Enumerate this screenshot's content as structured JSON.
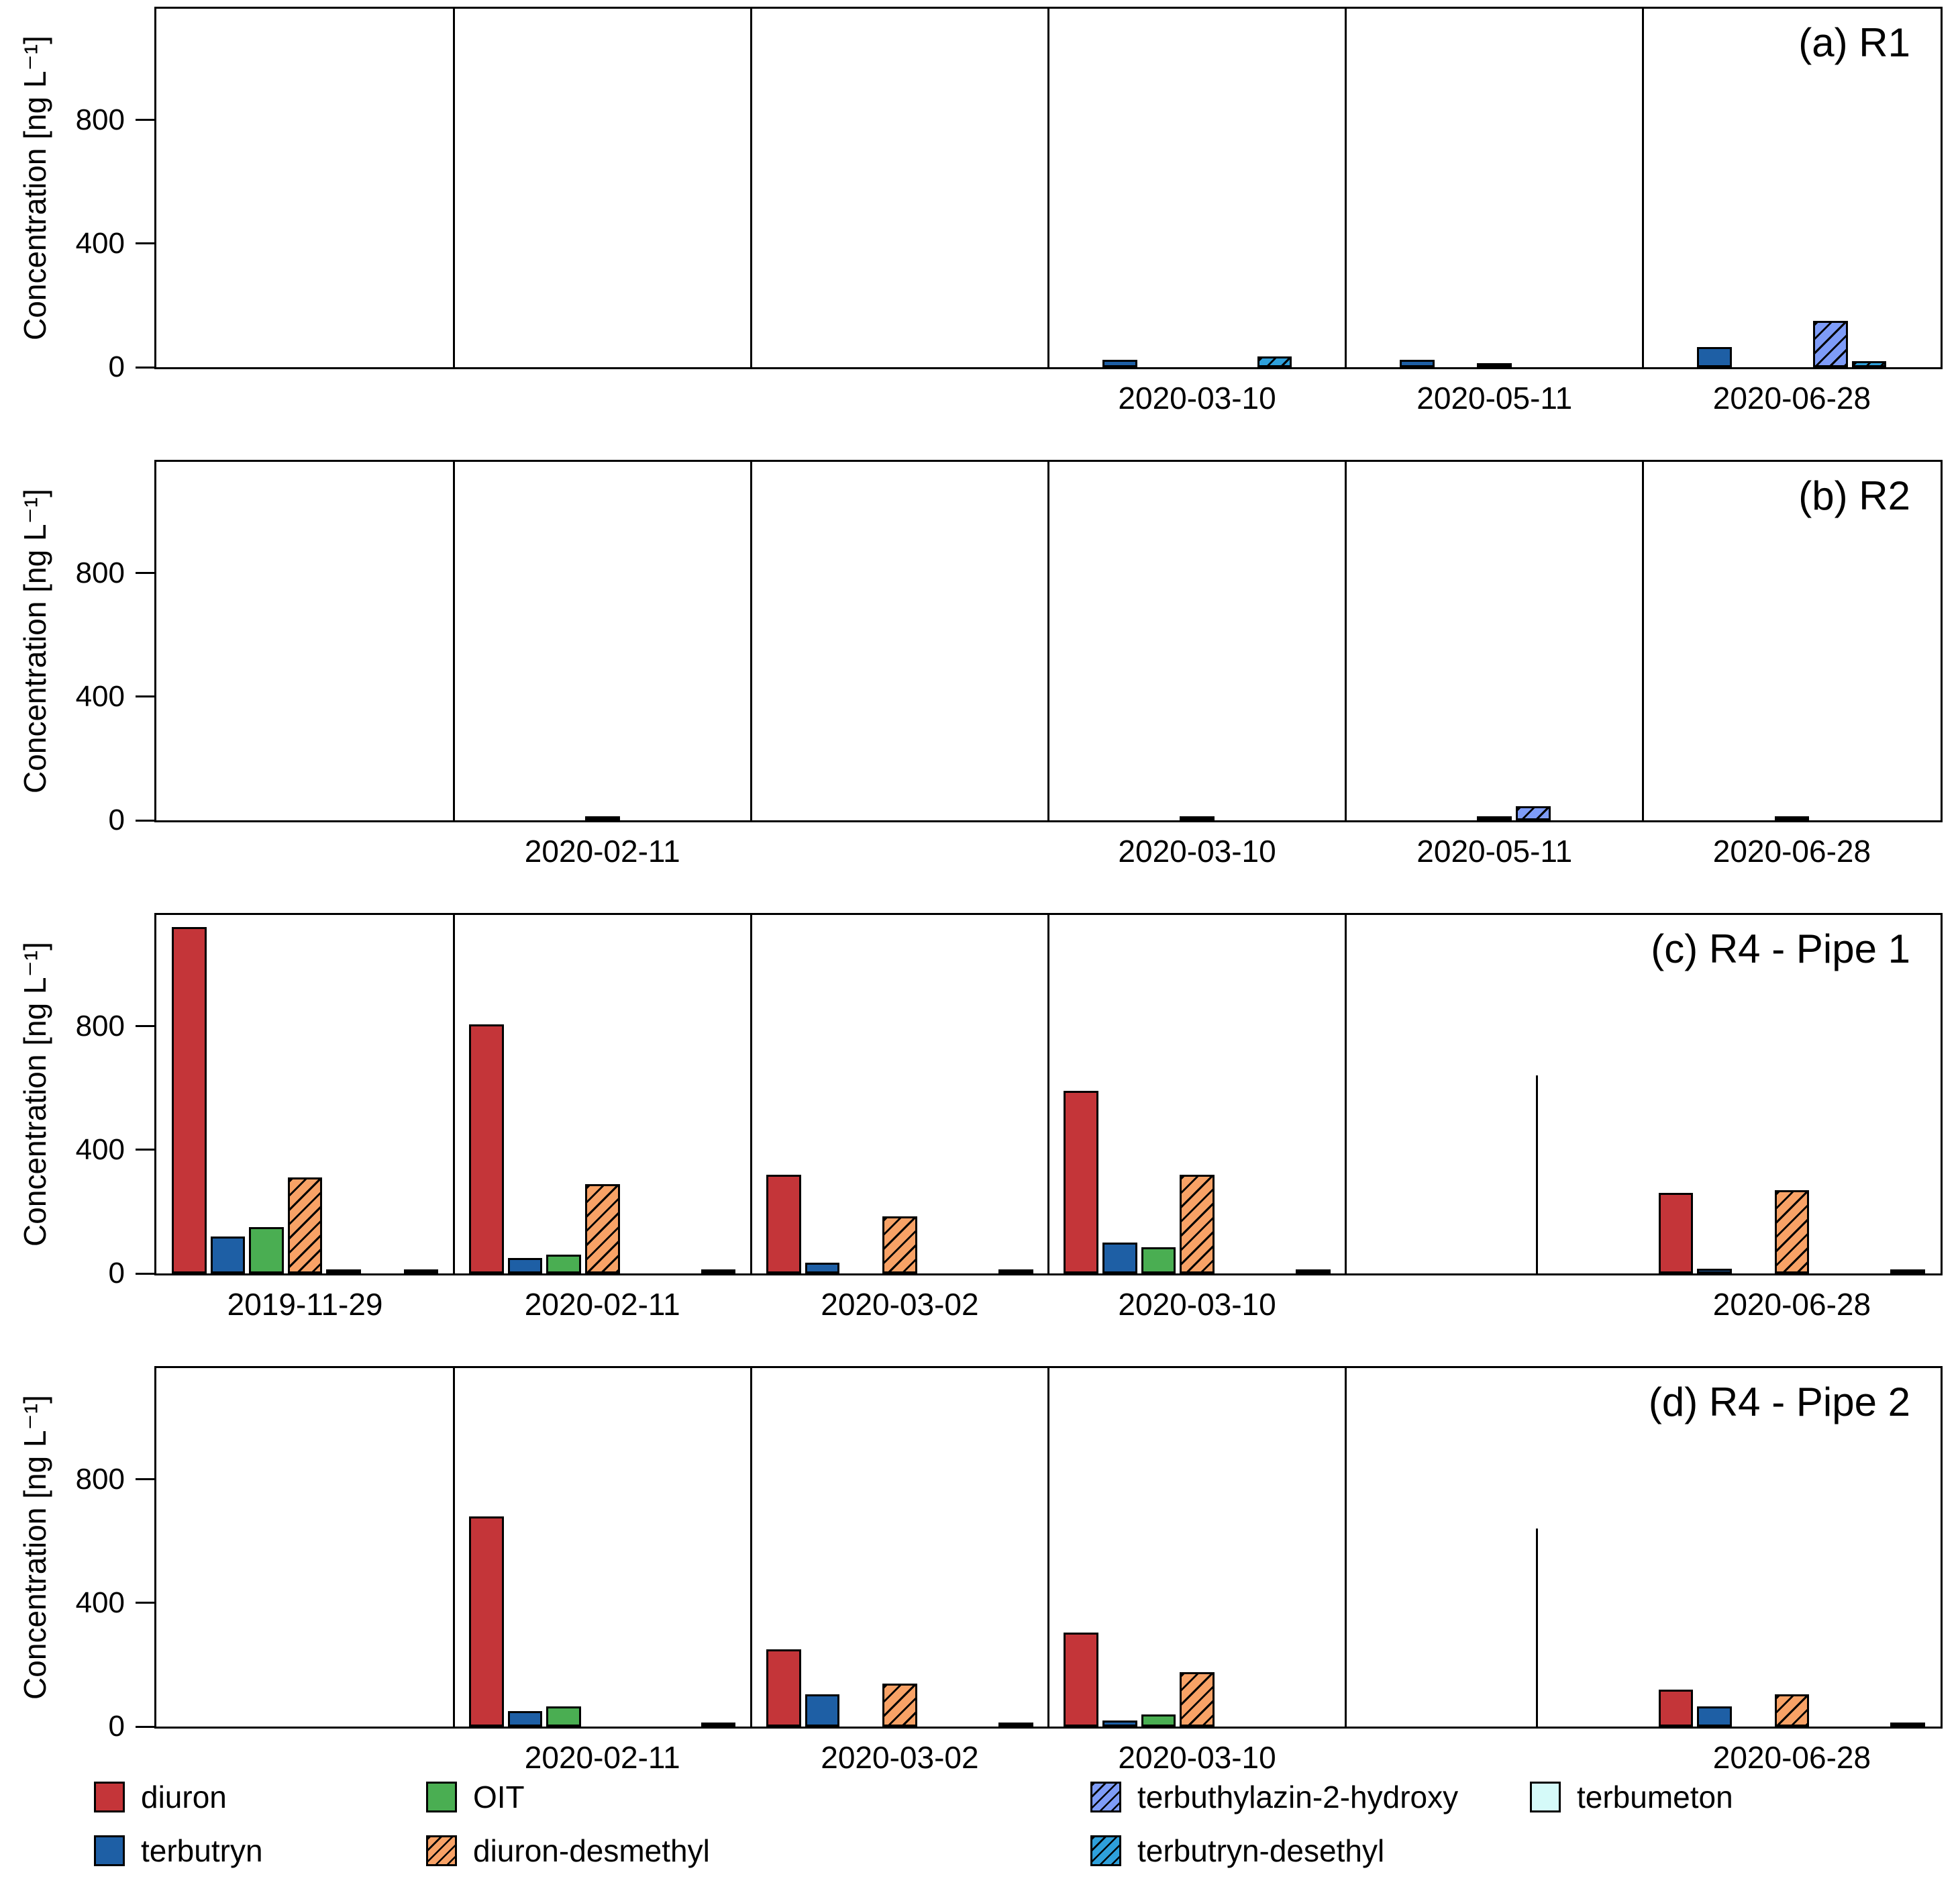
{
  "chart_data": {
    "type": "bar",
    "ylabel": "Concentration [ng L⁻¹]",
    "yticks": [
      0,
      400,
      800
    ],
    "ylim": [
      0,
      1160
    ],
    "n_columns": 6,
    "grid": "off",
    "legend_position": "bottom",
    "series": [
      {
        "name": "diuron",
        "color": "#C43539",
        "hatch": false
      },
      {
        "name": "terbutryn",
        "color": "#1E5FA5",
        "hatch": false
      },
      {
        "name": "OIT",
        "color": "#4AAE52",
        "hatch": false
      },
      {
        "name": "diuron-desmethyl",
        "color": "#F8A266",
        "hatch": true
      },
      {
        "name": "terbuthylazin-2-hydroxy",
        "color": "#7E9CF8",
        "hatch": true
      },
      {
        "name": "terbutryn-desethyl",
        "color": "#2EA0DB",
        "hatch": true
      },
      {
        "name": "terbumeton",
        "color": "#D5FAF9",
        "hatch": false
      }
    ],
    "legend": {
      "rows": [
        [
          "diuron",
          "OIT",
          "terbuthylazin-2-hydroxy",
          "terbumeton"
        ],
        [
          "terbutryn",
          "diuron-desmethyl",
          "terbutryn-desethyl"
        ]
      ]
    },
    "panels": [
      {
        "label": "(a) R1",
        "separators": [
          1,
          2,
          3,
          4,
          5
        ],
        "groups": [
          {
            "date": "",
            "values": {}
          },
          {
            "date": "",
            "values": {}
          },
          {
            "date": "",
            "values": {}
          },
          {
            "date": "2020-03-10",
            "values": {
              "terbutryn": 25,
              "terbutryn-desethyl": 35
            }
          },
          {
            "date": "2020-05-11",
            "values": {
              "terbutryn": 25,
              "diuron-desmethyl": 5
            }
          },
          {
            "date": "2020-06-28",
            "values": {
              "terbutryn": 65,
              "terbuthylazin-2-hydroxy": 150,
              "terbutryn-desethyl": 20
            }
          }
        ]
      },
      {
        "label": "(b) R2",
        "separators": [
          1,
          2,
          3,
          4,
          5
        ],
        "groups": [
          {
            "date": "",
            "values": {}
          },
          {
            "date": "2020-02-11",
            "values": {
              "diuron-desmethyl": 6
            }
          },
          {
            "date": "",
            "values": {}
          },
          {
            "date": "2020-03-10",
            "values": {
              "diuron-desmethyl": 8
            }
          },
          {
            "date": "2020-05-11",
            "values": {
              "diuron-desmethyl": 5,
              "terbuthylazin-2-hydroxy": 45
            }
          },
          {
            "date": "2020-06-28",
            "values": {
              "diuron-desmethyl": 8
            }
          }
        ]
      },
      {
        "label": "(c) R4 - Pipe 1",
        "separators": [
          1,
          2,
          3,
          4
        ],
        "spike": {
          "column": 5,
          "fraction": 0.64,
          "value": 640
        },
        "groups": [
          {
            "date": "2019-11-29",
            "values": {
              "diuron": 1120,
              "terbutryn": 120,
              "OIT": 150,
              "diuron-desmethyl": 310,
              "terbuthylazin-2-hydroxy": 5,
              "terbumeton": 4
            }
          },
          {
            "date": "2020-02-11",
            "values": {
              "diuron": 805,
              "terbutryn": 50,
              "OIT": 60,
              "diuron-desmethyl": 290,
              "terbumeton": 5
            }
          },
          {
            "date": "2020-03-02",
            "values": {
              "diuron": 320,
              "terbutryn": 35,
              "diuron-desmethyl": 185,
              "terbumeton": 6
            }
          },
          {
            "date": "2020-03-10",
            "values": {
              "diuron": 590,
              "terbutryn": 100,
              "OIT": 85,
              "diuron-desmethyl": 320,
              "terbumeton": 6
            }
          },
          {
            "date": "",
            "values": {}
          },
          {
            "date": "2020-06-28",
            "values": {
              "diuron": 260,
              "terbutryn": 15,
              "diuron-desmethyl": 270,
              "terbumeton": 5
            }
          }
        ]
      },
      {
        "label": "(d) R4 - Pipe 2",
        "separators": [
          1,
          2,
          3,
          4
        ],
        "spike": {
          "column": 5,
          "fraction": 0.64,
          "value": 640
        },
        "groups": [
          {
            "date": "",
            "values": {}
          },
          {
            "date": "2020-02-11",
            "values": {
              "diuron": 680,
              "terbutryn": 50,
              "OIT": 65,
              "terbumeton": 4
            }
          },
          {
            "date": "2020-03-02",
            "values": {
              "diuron": 250,
              "terbutryn": 105,
              "diuron-desmethyl": 140,
              "terbumeton": 8
            }
          },
          {
            "date": "2020-03-10",
            "values": {
              "diuron": 305,
              "terbutryn": 20,
              "OIT": 40,
              "diuron-desmethyl": 175
            }
          },
          {
            "date": "",
            "values": {}
          },
          {
            "date": "2020-06-28",
            "values": {
              "diuron": 120,
              "terbutryn": 65,
              "diuron-desmethyl": 105,
              "terbumeton": 8
            }
          }
        ]
      }
    ]
  }
}
